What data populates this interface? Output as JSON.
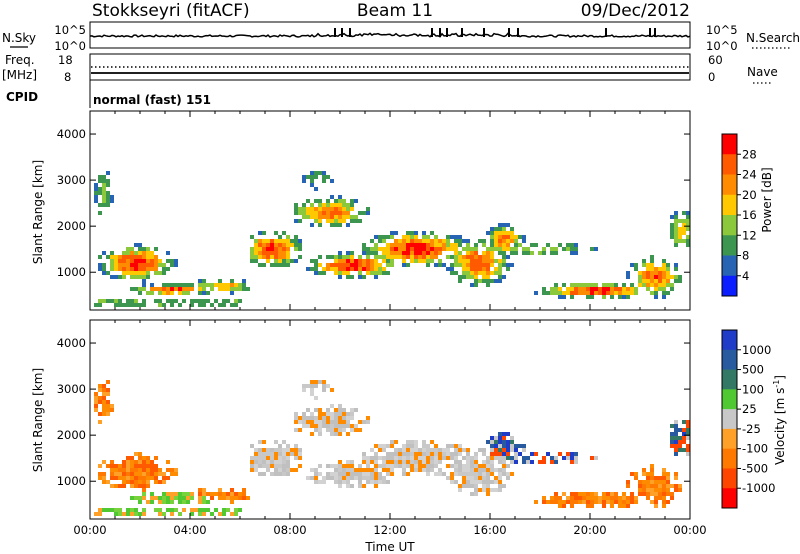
{
  "header": {
    "station": "Stokkseyri (fitACF)",
    "beam": "Beam 11",
    "date": "09/Dec/2012"
  },
  "top_panels": {
    "nsky_label": "N.Sky",
    "nsky_ticks": [
      "10^5",
      "10^0"
    ],
    "nsearch_label": "N.Search",
    "freq_label_1": "Freq.",
    "freq_label_2": "[MHz]",
    "freq_ticks": [
      "18",
      "8"
    ],
    "nave_ticks": [
      "60",
      "0"
    ],
    "nave_label": "Nave",
    "cpid_label": "CPID",
    "cpid_value": "normal (fast) 151"
  },
  "chart_data": [
    {
      "type": "heatmap",
      "name": "power",
      "ylabel": "Slant Range [km]",
      "ylim": [
        180,
        4500
      ],
      "y_ticks": [
        "1000",
        "2000",
        "3000",
        "4000"
      ],
      "x_ticks": [
        "00:00",
        "04:00",
        "08:00",
        "12:00",
        "16:00",
        "20:00",
        "00:00"
      ],
      "colorbar_label": "Power [dB]",
      "colorbar_ticks": [
        "28",
        "24",
        "20",
        "16",
        "12",
        "8",
        "4"
      ],
      "colorbar_colors": [
        "#ff0000",
        "#ff5a00",
        "#ff8c00",
        "#ffc800",
        "#8cc83c",
        "#3c9650",
        "#2864b4",
        "#0a1eff"
      ]
    },
    {
      "type": "heatmap",
      "name": "velocity",
      "ylabel": "Slant Range [km]",
      "ylim": [
        180,
        4500
      ],
      "y_ticks": [
        "1000",
        "2000",
        "3000",
        "4000"
      ],
      "x_ticks": [
        "00:00",
        "04:00",
        "08:00",
        "12:00",
        "16:00",
        "20:00",
        "00:00"
      ],
      "xlabel": "Time UT",
      "colorbar_label": "Velocity [m s^-1]",
      "colorbar_ticks": [
        "1000",
        "500",
        "100",
        "25",
        "-25",
        "-100",
        "-500",
        "-1000"
      ],
      "colorbar_colors": [
        "#1e3cc8",
        "#285aa0",
        "#327864",
        "#50c832",
        "#c8c8c8",
        "#ffa028",
        "#ff7800",
        "#ff4600",
        "#ff0000"
      ]
    }
  ]
}
